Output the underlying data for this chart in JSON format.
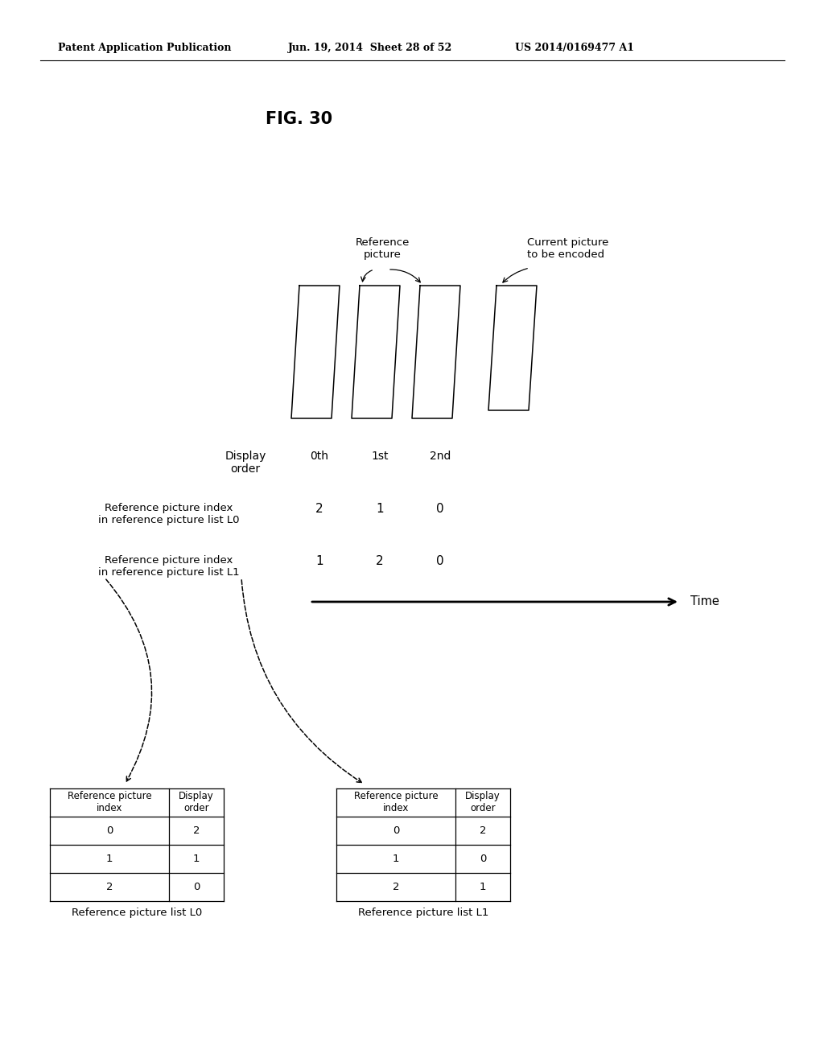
{
  "bg_color": "#ffffff",
  "header_left": "Patent Application Publication",
  "header_mid": "Jun. 19, 2014  Sheet 28 of 52",
  "header_right": "US 2014/0169477 A1",
  "fig_label": "FIG. 30",
  "ref_picture_label": "Reference\npicture",
  "cur_picture_label": "Current picture\nto be encoded",
  "display_order_label": "Display\norder",
  "display_orders": [
    "0th",
    "1st",
    "2nd"
  ],
  "L0_label": "Reference picture index\nin reference picture list L0",
  "L0_values": [
    "2",
    "1",
    "0"
  ],
  "L1_label": "Reference picture index\nin reference picture list L1",
  "L1_values": [
    "1",
    "2",
    "0"
  ],
  "time_label": "Time",
  "table_L0_title": "Reference picture list L0",
  "table_L1_title": "Reference picture list L1",
  "table_col1": "Reference picture\nindex",
  "table_col2": "Display\norder",
  "table_L0_data": [
    [
      "0",
      "2"
    ],
    [
      "1",
      "1"
    ],
    [
      "2",
      "0"
    ]
  ],
  "table_L1_data": [
    [
      "0",
      "2"
    ],
    [
      "1",
      "0"
    ],
    [
      "2",
      "1"
    ]
  ]
}
